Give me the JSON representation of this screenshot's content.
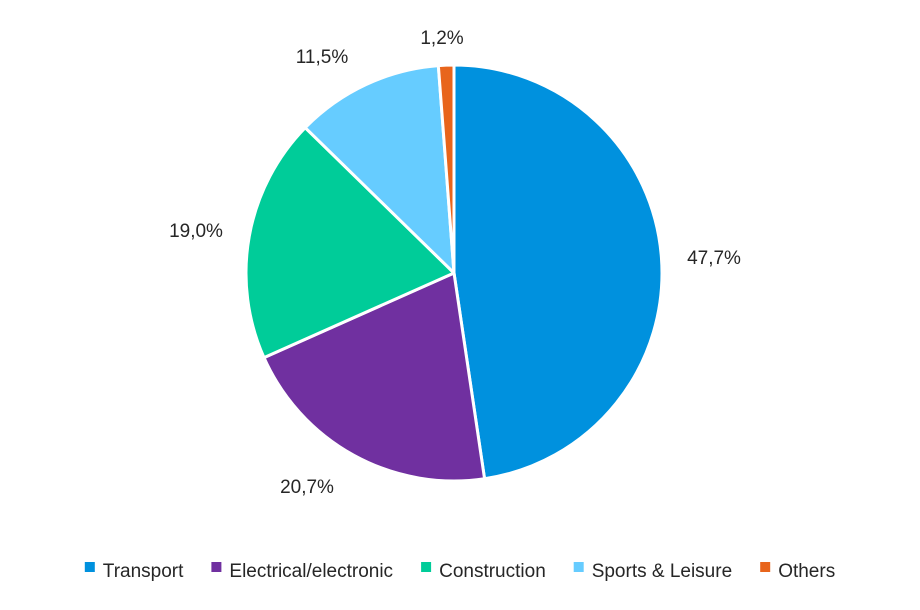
{
  "chart_data": {
    "type": "pie",
    "title": "",
    "start_angle_deg": 0,
    "direction": "clockwise",
    "slices": [
      {
        "label": "Transport",
        "value": 47.7,
        "display": "47,7%",
        "color": "#0091DE"
      },
      {
        "label": "Electrical/electronic",
        "value": 20.7,
        "display": "20,7%",
        "color": "#7030A0"
      },
      {
        "label": "Construction",
        "value": 19.0,
        "display": "19,0%",
        "color": "#00CC99"
      },
      {
        "label": "Sports & Leisure",
        "value": 11.5,
        "display": "11,5%",
        "color": "#66CCFF"
      },
      {
        "label": "Others",
        "value": 1.2,
        "display": "1,2%",
        "color": "#E8651C"
      }
    ],
    "legend_position": "bottom",
    "slice_border_color": "#FFFFFF"
  }
}
